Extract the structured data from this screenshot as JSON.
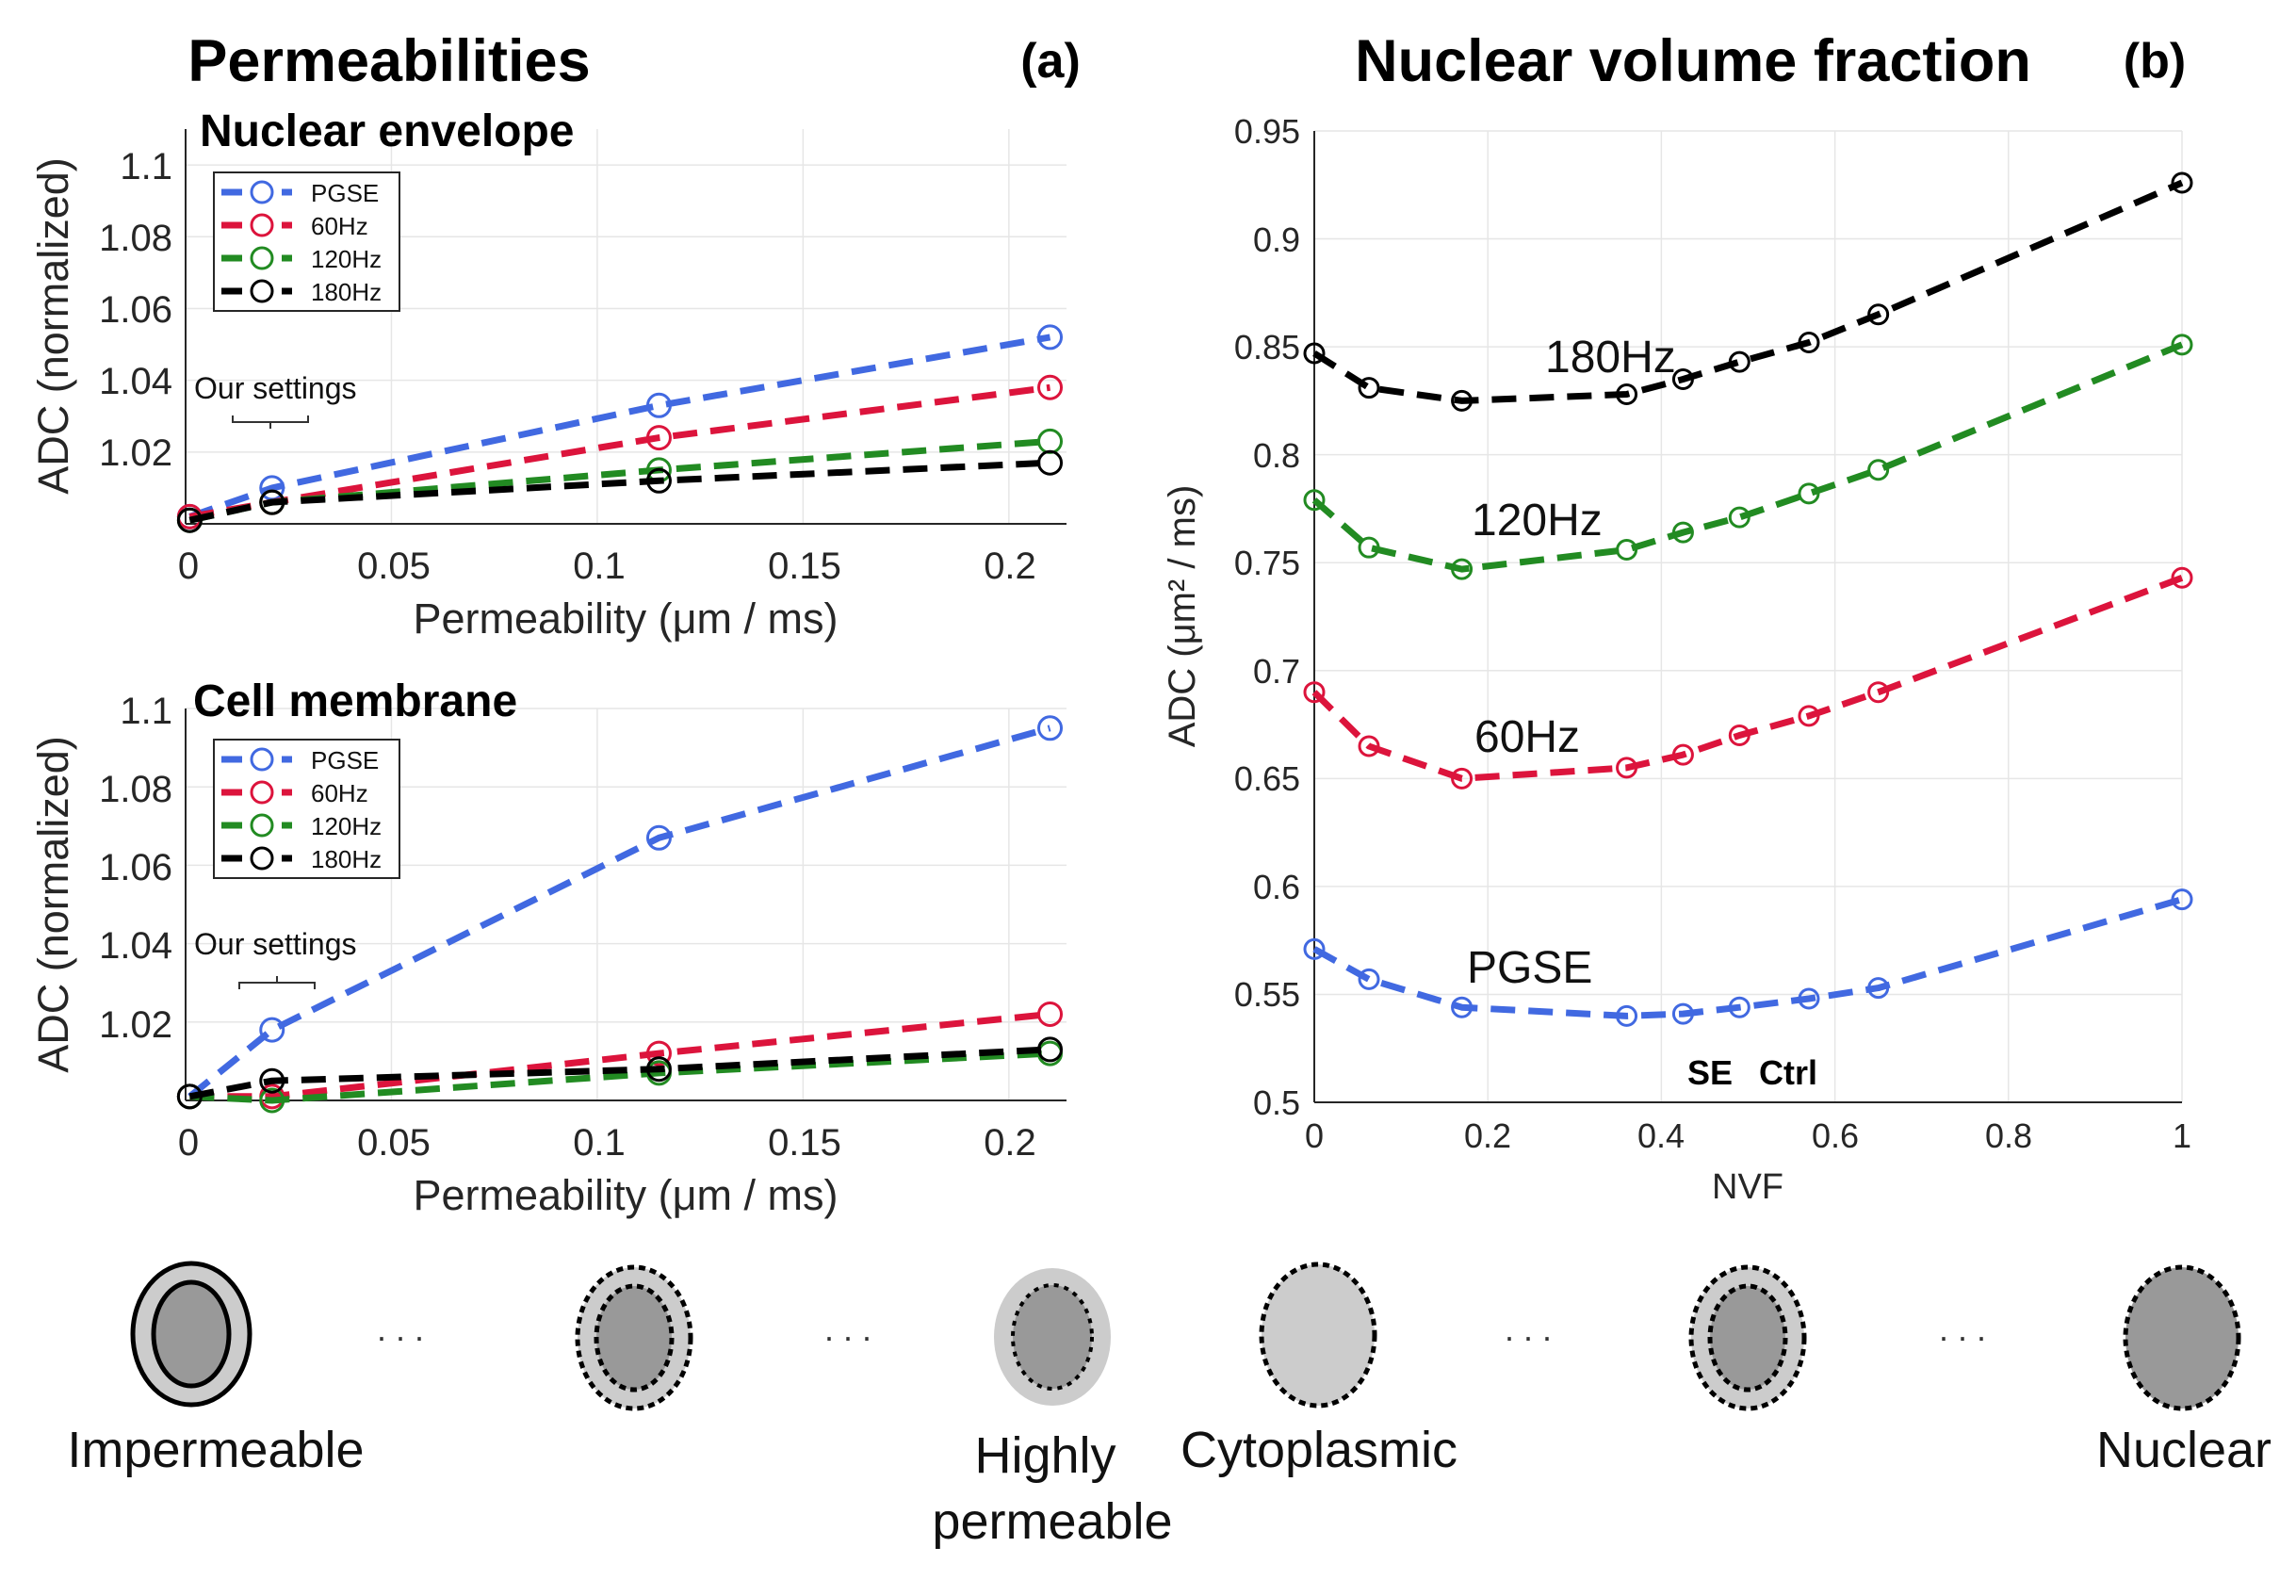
{
  "panel_a": {
    "title": "Permeabilities",
    "label": "(a)",
    "subplots": [
      {
        "subtitle": "Nuclear envelope",
        "annotation": "Our settings",
        "xlabel": "Permeability (μm / ms)",
        "ylabel": "ADC (normalized)",
        "x_ticks": [
          "0",
          "0.05",
          "0.1",
          "0.15",
          "0.2"
        ],
        "y_ticks": [
          "1.02",
          "1.04",
          "1.06",
          "1.08",
          "1.1"
        ],
        "xlim": [
          0,
          0.214
        ],
        "ylim": [
          1.0,
          1.11
        ],
        "series": [
          {
            "name": "PGSE",
            "color": "#4169e1",
            "x": [
              0.001,
              0.021,
              0.115,
              0.21
            ],
            "y": [
              1.002,
              1.01,
              1.033,
              1.052
            ]
          },
          {
            "name": "60Hz",
            "color": "#dc143c",
            "x": [
              0.001,
              0.021,
              0.115,
              0.21
            ],
            "y": [
              1.002,
              1.006,
              1.024,
              1.038
            ]
          },
          {
            "name": "120Hz",
            "color": "#228b22",
            "x": [
              0.001,
              0.021,
              0.115,
              0.21
            ],
            "y": [
              1.001,
              1.006,
              1.015,
              1.023
            ]
          },
          {
            "name": "180Hz",
            "color": "#000000",
            "x": [
              0.001,
              0.021,
              0.115,
              0.21
            ],
            "y": [
              1.001,
              1.006,
              1.012,
              1.017
            ]
          }
        ]
      },
      {
        "subtitle": "Cell membrane",
        "annotation": "Our settings",
        "xlabel": "Permeability (μm / ms)",
        "ylabel": "ADC (normalized)",
        "x_ticks": [
          "0",
          "0.05",
          "0.1",
          "0.15",
          "0.2"
        ],
        "y_ticks": [
          "1.02",
          "1.04",
          "1.06",
          "1.08",
          "1.1"
        ],
        "xlim": [
          0,
          0.214
        ],
        "ylim": [
          1.0,
          1.1
        ],
        "series": [
          {
            "name": "PGSE",
            "color": "#4169e1",
            "x": [
              0.001,
              0.021,
              0.115,
              0.21
            ],
            "y": [
              1.001,
              1.018,
              1.067,
              1.095
            ]
          },
          {
            "name": "60Hz",
            "color": "#dc143c",
            "x": [
              0.001,
              0.021,
              0.115,
              0.21
            ],
            "y": [
              1.001,
              1.001,
              1.012,
              1.022
            ]
          },
          {
            "name": "120Hz",
            "color": "#228b22",
            "x": [
              0.001,
              0.021,
              0.115,
              0.21
            ],
            "y": [
              1.001,
              1.0,
              1.007,
              1.012
            ]
          },
          {
            "name": "180Hz",
            "color": "#000000",
            "x": [
              0.001,
              0.021,
              0.115,
              0.21
            ],
            "y": [
              1.001,
              1.005,
              1.008,
              1.013
            ]
          }
        ]
      }
    ]
  },
  "panel_b": {
    "title": "Nuclear volume fraction",
    "label": "(b)",
    "xlabel": "NVF",
    "ylabel": "ADC (μm² / ms)",
    "x_ticks": [
      "0",
      "0.2",
      "0.4",
      "0.6",
      "0.8",
      "1"
    ],
    "y_ticks": [
      "0.5",
      "0.55",
      "0.6",
      "0.65",
      "0.7",
      "0.75",
      "0.8",
      "0.85",
      "0.9",
      "0.95"
    ],
    "markers": [
      "SE",
      "Ctrl"
    ]
  },
  "chart_data": [
    {
      "type": "line",
      "title": "Permeabilities — Nuclear envelope",
      "xlabel": "Permeability (μm / ms)",
      "ylabel": "ADC (normalized)",
      "xlim": [
        0,
        0.214
      ],
      "ylim": [
        1.0,
        1.11
      ],
      "series": [
        {
          "name": "PGSE",
          "x": [
            0.001,
            0.021,
            0.115,
            0.21
          ],
          "y": [
            1.002,
            1.01,
            1.033,
            1.052
          ]
        },
        {
          "name": "60Hz",
          "x": [
            0.001,
            0.021,
            0.115,
            0.21
          ],
          "y": [
            1.002,
            1.006,
            1.024,
            1.038
          ]
        },
        {
          "name": "120Hz",
          "x": [
            0.001,
            0.021,
            0.115,
            0.21
          ],
          "y": [
            1.001,
            1.006,
            1.015,
            1.023
          ]
        },
        {
          "name": "180Hz",
          "x": [
            0.001,
            0.021,
            0.115,
            0.21
          ],
          "y": [
            1.001,
            1.006,
            1.012,
            1.017
          ]
        }
      ]
    },
    {
      "type": "line",
      "title": "Permeabilities — Cell membrane",
      "xlabel": "Permeability (μm / ms)",
      "ylabel": "ADC (normalized)",
      "xlim": [
        0,
        0.214
      ],
      "ylim": [
        1.0,
        1.1
      ],
      "series": [
        {
          "name": "PGSE",
          "x": [
            0.001,
            0.021,
            0.115,
            0.21
          ],
          "y": [
            1.001,
            1.018,
            1.067,
            1.095
          ]
        },
        {
          "name": "60Hz",
          "x": [
            0.001,
            0.021,
            0.115,
            0.21
          ],
          "y": [
            1.001,
            1.001,
            1.012,
            1.022
          ]
        },
        {
          "name": "120Hz",
          "x": [
            0.001,
            0.021,
            0.115,
            0.21
          ],
          "y": [
            1.001,
            1.0,
            1.007,
            1.012
          ]
        },
        {
          "name": "180Hz",
          "x": [
            0.001,
            0.021,
            0.115,
            0.21
          ],
          "y": [
            1.001,
            1.005,
            1.008,
            1.013
          ]
        }
      ]
    },
    {
      "type": "line",
      "title": "Nuclear volume fraction",
      "xlabel": "NVF",
      "ylabel": "ADC (μm² / ms)",
      "xlim": [
        0,
        1
      ],
      "ylim": [
        0.5,
        0.95
      ],
      "series": [
        {
          "name": "180Hz",
          "color": "#000000",
          "x": [
            0,
            0.063,
            0.17,
            0.36,
            0.425,
            0.49,
            0.57,
            0.65,
            1.0
          ],
          "y": [
            0.847,
            0.831,
            0.825,
            0.828,
            0.835,
            0.843,
            0.852,
            0.865,
            0.926
          ]
        },
        {
          "name": "120Hz",
          "color": "#228b22",
          "x": [
            0,
            0.063,
            0.17,
            0.36,
            0.425,
            0.49,
            0.57,
            0.65,
            1.0
          ],
          "y": [
            0.779,
            0.757,
            0.747,
            0.756,
            0.764,
            0.771,
            0.782,
            0.793,
            0.851
          ]
        },
        {
          "name": "60Hz",
          "color": "#dc143c",
          "x": [
            0,
            0.063,
            0.17,
            0.36,
            0.425,
            0.49,
            0.57,
            0.65,
            1.0
          ],
          "y": [
            0.69,
            0.665,
            0.65,
            0.655,
            0.661,
            0.67,
            0.679,
            0.69,
            0.743
          ]
        },
        {
          "name": "PGSE",
          "color": "#4169e1",
          "x": [
            0,
            0.063,
            0.17,
            0.36,
            0.425,
            0.49,
            0.57,
            0.65,
            1.0
          ],
          "y": [
            0.571,
            0.557,
            0.544,
            0.54,
            0.541,
            0.544,
            0.548,
            0.553,
            0.594
          ]
        }
      ]
    }
  ],
  "illustrations": {
    "ellipsis": ". . .",
    "labels": [
      "Impermeable",
      "Highly permeable",
      "Cytoplasmic",
      "Nuclear"
    ]
  }
}
